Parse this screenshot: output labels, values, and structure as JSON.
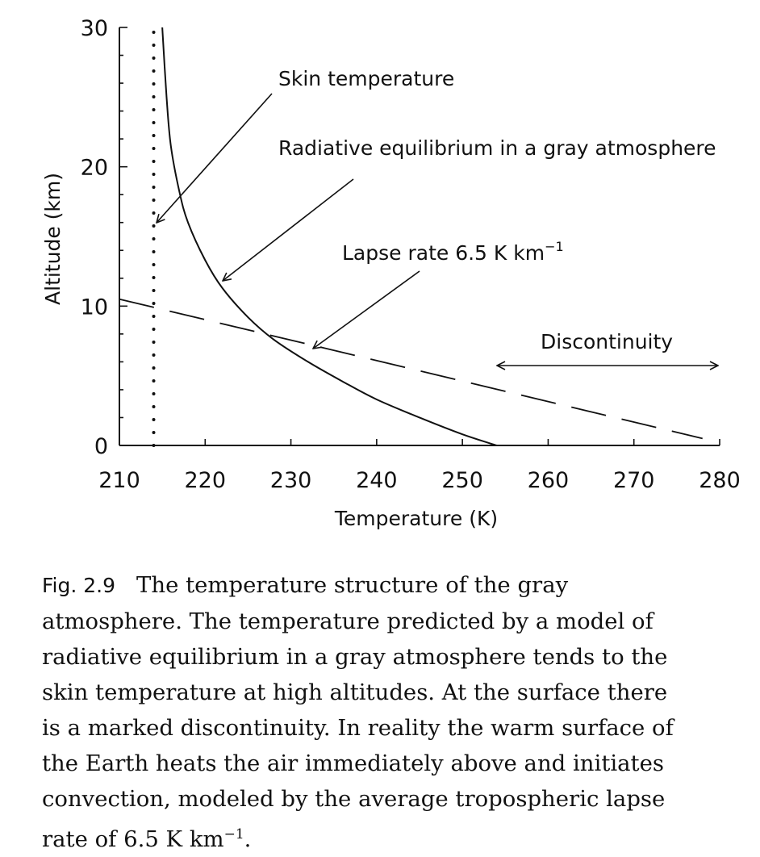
{
  "chart_data": {
    "type": "line",
    "title": "",
    "xlabel": "Temperature (K)",
    "ylabel": "Altitude (km)",
    "xlim": [
      210,
      280
    ],
    "ylim": [
      0,
      30
    ],
    "xticks": [
      "210",
      "220",
      "230",
      "240",
      "250",
      "260",
      "270",
      "280"
    ],
    "yticks": [
      "0",
      "10",
      "20",
      "30"
    ],
    "series": [
      {
        "name": "Skin temperature",
        "style": "dotted",
        "x": [
          214,
          214
        ],
        "y": [
          0,
          30
        ]
      },
      {
        "name": "Radiative equilibrium in a gray atmosphere",
        "style": "solid",
        "x": [
          254,
          250,
          245,
          240,
          236,
          232,
          228,
          225,
          222,
          220,
          218,
          217,
          216,
          215.5,
          215
        ],
        "y": [
          0,
          0.8,
          2.0,
          3.3,
          4.6,
          6.0,
          7.6,
          9.2,
          11.3,
          13.3,
          16.0,
          18.2,
          21.5,
          25.0,
          30.0
        ]
      },
      {
        "name": "Lapse rate 6.5 K km-1",
        "style": "dashed",
        "x": [
          210,
          278
        ],
        "y": [
          10.5,
          0.5
        ]
      }
    ],
    "annotations": [
      {
        "text": "Skin temperature",
        "target": "skin"
      },
      {
        "text": "Radiative equilibrium in a gray atmosphere",
        "target": "radiative"
      },
      {
        "text": "Lapse rate 6.5 K km",
        "superscript": "−1",
        "target": "lapse"
      },
      {
        "text": "Discontinuity",
        "target": "discontinuity"
      }
    ]
  },
  "caption": {
    "label": "Fig. 2.9",
    "lines": [
      "The temperature structure of the gray",
      "atmosphere. The temperature predicted by a model of",
      "radiative equilibrium in a gray atmosphere tends to the",
      "skin temperature at high altitudes. At the surface there",
      "is a marked discontinuity. In reality the warm surface of",
      "the Earth heats the air immediately above and initiates",
      "convection, modeled by the average tropospheric lapse"
    ],
    "last_line_prefix": "rate of 6.5 K km",
    "last_line_superscript": "−1",
    "last_line_suffix": "."
  }
}
